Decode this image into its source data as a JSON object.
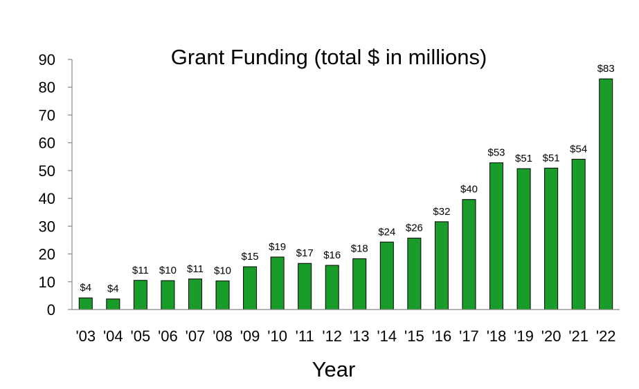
{
  "chart_data": {
    "type": "bar",
    "title": "Grant Funding (total $ in millions)",
    "xlabel": "Year",
    "ylabel": "",
    "ylim": [
      0,
      90
    ],
    "yticks": [
      "0",
      "10",
      "20",
      "30",
      "40",
      "50",
      "60",
      "70",
      "80",
      "90"
    ],
    "grid": false,
    "legend": "none",
    "categories": [
      "'03",
      "'04",
      "'05",
      "'06",
      "'07",
      "'08",
      "'09",
      "'10",
      "'11",
      "'12",
      "'13",
      "'14",
      "'15",
      "'16",
      "'17",
      "'18",
      "'19",
      "'20",
      "'21",
      "'22"
    ],
    "values": [
      4.2,
      3.8,
      10.5,
      10.4,
      11,
      10.3,
      15.4,
      18.9,
      16.6,
      15.9,
      18.3,
      24.3,
      25.7,
      31.6,
      39.6,
      52.8,
      50.7,
      50.9,
      54.1,
      83
    ],
    "data_labels": [
      "$4",
      "$4",
      "$11",
      "$10",
      "$11",
      "$10",
      "$15",
      "$19",
      "$17",
      "$16",
      "$18",
      "$24",
      "$26",
      "$32",
      "$40",
      "$53",
      "$51",
      "$51",
      "$54",
      "$83"
    ],
    "bar_color": "#1a9c2a",
    "bar_edge_color": "#000000"
  }
}
